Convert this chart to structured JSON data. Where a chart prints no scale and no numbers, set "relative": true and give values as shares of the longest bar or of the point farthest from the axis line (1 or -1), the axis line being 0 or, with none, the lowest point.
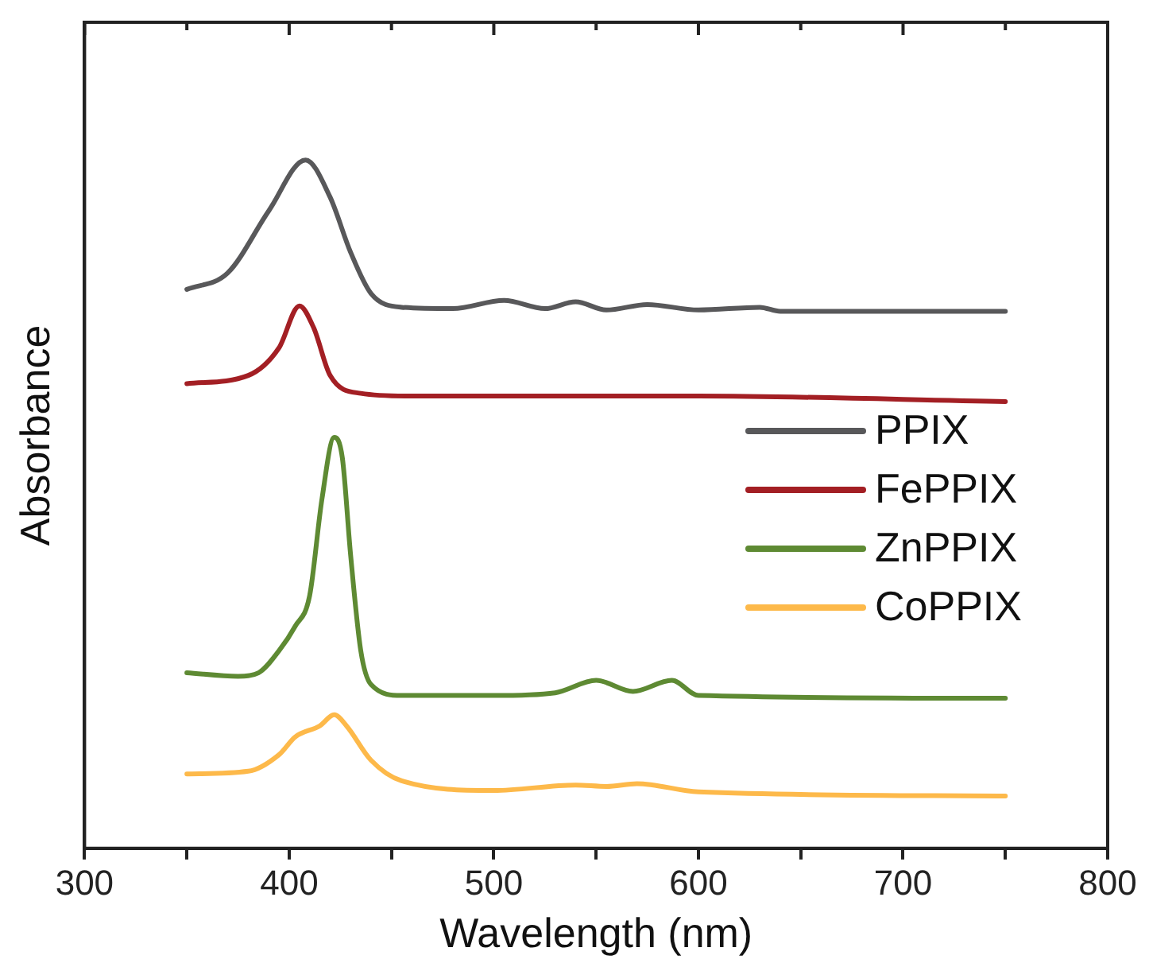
{
  "chart_data": {
    "type": "line",
    "xlabel": "Wavelength (nm)",
    "ylabel": "Absorbance",
    "relative": true,
    "xlim": [
      300,
      800
    ],
    "xticks": [
      300,
      {
        "value": 350,
        "label": null
      },
      400,
      {
        "value": 450,
        "label": null
      },
      500,
      {
        "value": 550,
        "label": null
      },
      600,
      {
        "value": 650,
        "label": null
      },
      700,
      {
        "value": 750,
        "label": null
      },
      800
    ],
    "grid": false,
    "legend": "right",
    "marker": "none",
    "line_style": "solid",
    "series": [
      {
        "name": "PPIX",
        "color": "#58585a",
        "x": [
          350,
          370,
          390,
          408,
          420,
          430,
          440,
          455,
          480,
          505,
          525,
          540,
          555,
          575,
          600,
          630,
          640,
          750
        ],
        "values": [
          0.812,
          0.836,
          0.926,
          1.0,
          0.946,
          0.866,
          0.806,
          0.786,
          0.784,
          0.796,
          0.784,
          0.794,
          0.782,
          0.79,
          0.782,
          0.786,
          0.78,
          0.78
        ]
      },
      {
        "name": "FePPIX",
        "color": "#a31f24",
        "x": [
          350,
          380,
          395,
          405,
          412,
          420,
          435,
          460,
          600,
          750
        ],
        "values": [
          0.675,
          0.687,
          0.727,
          0.788,
          0.756,
          0.687,
          0.661,
          0.657,
          0.657,
          0.649
        ]
      },
      {
        "name": "ZnPPIX",
        "color": "#5e8a33",
        "x": [
          350,
          375,
          385,
          395,
          403,
          410,
          416,
          422,
          426,
          430,
          435,
          440,
          455,
          500,
          530,
          550,
          568,
          587,
          600,
          750
        ],
        "values": [
          0.255,
          0.25,
          0.255,
          0.287,
          0.323,
          0.367,
          0.507,
          0.597,
          0.567,
          0.427,
          0.287,
          0.238,
          0.222,
          0.222,
          0.226,
          0.244,
          0.228,
          0.244,
          0.222,
          0.218
        ]
      },
      {
        "name": "CoPPIX",
        "color": "#fdb94a",
        "x": [
          350,
          380,
          395,
          403,
          415,
          422,
          428,
          440,
          455,
          500,
          540,
          555,
          570,
          600,
          750
        ],
        "values": [
          0.108,
          0.112,
          0.136,
          0.162,
          0.178,
          0.194,
          0.178,
          0.128,
          0.098,
          0.084,
          0.092,
          0.09,
          0.094,
          0.082,
          0.076
        ]
      }
    ]
  }
}
